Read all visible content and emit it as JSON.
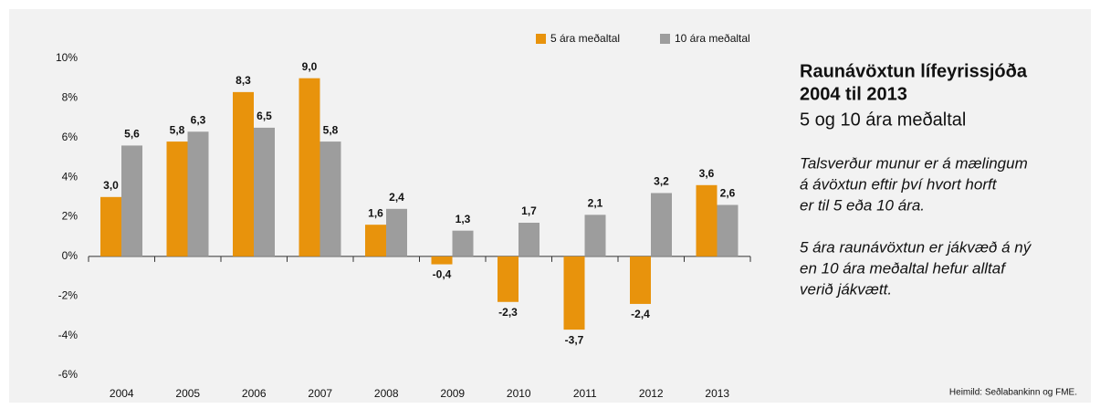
{
  "chart_data": {
    "type": "bar",
    "title": [
      "Raunávöxtun lífeyrissjóða",
      "2004 til 2013"
    ],
    "subtitle": "5 og 10 ára meðaltal",
    "notes": [
      [
        "Talsverður munur er á mælingum",
        "á ávöxtun eftir því hvort horft",
        "er til 5 eða 10 ára."
      ],
      [
        "5 ára raunávöxtun er jákvæð á ný",
        "en 10 ára meðaltal hefur alltaf",
        "verið jákvætt."
      ]
    ],
    "source": "Heimild: Seðlabankinn og FME.",
    "categories": [
      "2004",
      "2005",
      "2006",
      "2007",
      "2008",
      "2009",
      "2010",
      "2011",
      "2012",
      "2013"
    ],
    "series": [
      {
        "name": "5 ára meðaltal",
        "color": "#e8930c",
        "values": [
          3.0,
          5.8,
          8.3,
          9.0,
          1.6,
          -0.4,
          -2.3,
          -3.7,
          -2.4,
          3.6
        ],
        "value_labels": [
          "3,0",
          "5,8",
          "8,3",
          "9,0",
          "1,6",
          "-0,4",
          "-2,3",
          "-3,7",
          "-2,4",
          "3,6"
        ]
      },
      {
        "name": "10 ára meðaltal",
        "color": "#9d9d9d",
        "values": [
          5.6,
          6.3,
          6.5,
          5.8,
          2.4,
          1.3,
          1.7,
          2.1,
          3.2,
          2.6
        ],
        "value_labels": [
          "5,6",
          "6,3",
          "6,5",
          "5,8",
          "2,4",
          "1,3",
          "1,7",
          "2,1",
          "3,2",
          "2,6"
        ]
      }
    ],
    "ylim": [
      -6,
      10
    ],
    "yticks": [
      {
        "value": -6,
        "label": "-6%"
      },
      {
        "value": -4,
        "label": "-4%"
      },
      {
        "value": -2,
        "label": "-2%"
      },
      {
        "value": 0,
        "label": "0%"
      },
      {
        "value": 2,
        "label": "2%"
      },
      {
        "value": 4,
        "label": "4%"
      },
      {
        "value": 6,
        "label": "6%"
      },
      {
        "value": 8,
        "label": "8%"
      },
      {
        "value": 10,
        "label": "10%"
      }
    ],
    "legend": "top"
  }
}
